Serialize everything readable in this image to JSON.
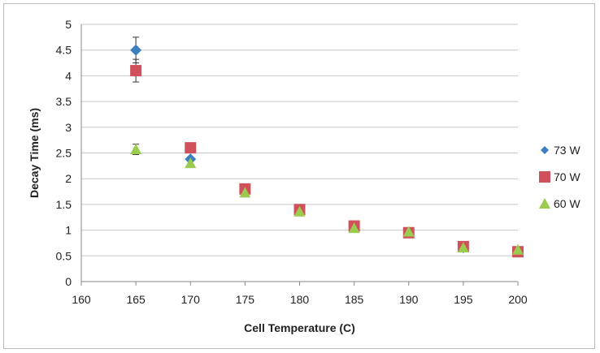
{
  "chart_data": {
    "type": "scatter",
    "title": "",
    "xlabel": "Cell Temperature (C)",
    "ylabel": "Decay Time (ms)",
    "xlim": [
      160,
      200
    ],
    "ylim": [
      0,
      5
    ],
    "xticks": [
      160,
      165,
      170,
      175,
      180,
      185,
      190,
      195,
      200
    ],
    "yticks": [
      0,
      0.5,
      1,
      1.5,
      2,
      2.5,
      3,
      3.5,
      4,
      4.5,
      5
    ],
    "grid": true,
    "legend_position": "right",
    "series": [
      {
        "name": "73 W",
        "marker": "diamond",
        "color": "#3c7fc1",
        "x": [
          165,
          170,
          175,
          180,
          185,
          190,
          195,
          200
        ],
        "y": [
          4.5,
          2.38,
          1.78,
          1.38,
          1.06,
          0.95,
          0.66,
          0.58
        ],
        "err": [
          0.25,
          0,
          0,
          0,
          0,
          0,
          0,
          0
        ]
      },
      {
        "name": "70 W",
        "marker": "square",
        "color": "#d0505c",
        "x": [
          165,
          170,
          175,
          180,
          185,
          190,
          195,
          200
        ],
        "y": [
          4.1,
          2.6,
          1.8,
          1.4,
          1.08,
          0.95,
          0.68,
          0.58
        ],
        "err": [
          0.22,
          0,
          0,
          0,
          0,
          0,
          0,
          0
        ]
      },
      {
        "name": "60 W",
        "marker": "triangle",
        "color": "#9bcc50",
        "x": [
          165,
          170,
          175,
          180,
          185,
          190,
          195,
          200
        ],
        "y": [
          2.57,
          2.3,
          1.73,
          1.36,
          1.04,
          0.97,
          0.66,
          0.62
        ],
        "err": [
          0.1,
          0,
          0,
          0,
          0,
          0,
          0,
          0
        ]
      }
    ]
  }
}
